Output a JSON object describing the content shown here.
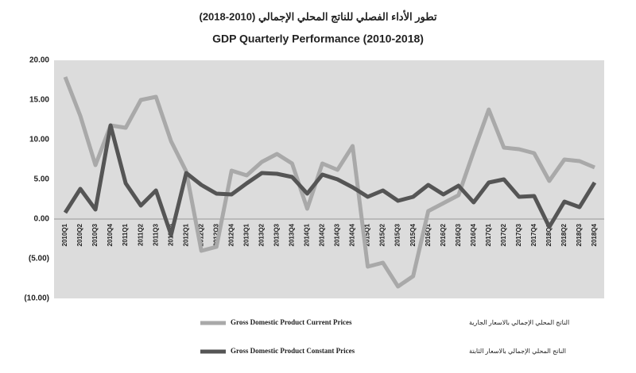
{
  "chart_data": {
    "type": "line",
    "title_ar": "تطور الأداء الفصلي للناتج المحلي الإجمالي (2010-2018)",
    "title": "GDP Quarterly Performance (2010-2018)",
    "categories": [
      "2010Q1",
      "2010Q2",
      "2010Q3",
      "2010Q4",
      "2011Q1",
      "2011Q2",
      "2011Q3",
      "2011Q4",
      "2012Q1",
      "2012Q2",
      "2012Q3",
      "2012Q4",
      "2013Q1",
      "2013Q2",
      "2013Q3",
      "2013Q4",
      "2014Q1",
      "2014Q2",
      "2014Q3",
      "2014Q4",
      "2015Q1",
      "2015Q2",
      "2015Q3",
      "2015Q4",
      "2016Q1",
      "2016Q2",
      "2016Q3",
      "2016Q4",
      "2017Q1",
      "2017Q2",
      "2017Q3",
      "2017Q4",
      "2018Q1",
      "2018Q2",
      "2018Q3",
      "2018Q4"
    ],
    "series": [
      {
        "name": "Gross Domestic Product Current Prices",
        "name_ar": "الناتج المحلي الإجمالي بالاسعار الجارية",
        "color": "#a9a9a9",
        "values": [
          17.9,
          13,
          6.8,
          11.8,
          11.5,
          15,
          15.4,
          9.8,
          6,
          -4,
          -3.5,
          6.1,
          5.5,
          7.2,
          8.2,
          7,
          1.3,
          7,
          6.2,
          9.2,
          -6,
          -5.5,
          -8.5,
          -7.2,
          1,
          2,
          3,
          8.5,
          13.8,
          9,
          8.8,
          8.3,
          4.8,
          7.5,
          7.3,
          6.5
        ]
      },
      {
        "name": "Gross Domestic Product Constant Prices",
        "name_ar": "الناتج المحلي الإجمالي بالاسعار الثابتة",
        "color": "#555555",
        "values": [
          0.8,
          3.8,
          1.2,
          11.8,
          4.5,
          1.7,
          3.6,
          -2,
          5.8,
          4.3,
          3.2,
          3.1,
          4.5,
          5.8,
          5.7,
          5.3,
          3.2,
          5.6,
          5,
          4,
          2.8,
          3.6,
          2.3,
          2.8,
          4.3,
          3.1,
          4.2,
          2.1,
          4.6,
          5,
          2.8,
          2.9,
          -1,
          2.2,
          1.5,
          4.6
        ]
      }
    ],
    "ylim": [
      -10,
      20
    ],
    "yticks": [
      {
        "value": 20,
        "label": "20.00"
      },
      {
        "value": 15,
        "label": "15.00"
      },
      {
        "value": 10,
        "label": "10.00"
      },
      {
        "value": 5,
        "label": "5.00"
      },
      {
        "value": 0,
        "label": "0.00"
      },
      {
        "value": -5,
        "label": "(5.00)"
      },
      {
        "value": -10,
        "label": "(10.00)"
      }
    ],
    "grid": false,
    "legend": "bottom"
  }
}
